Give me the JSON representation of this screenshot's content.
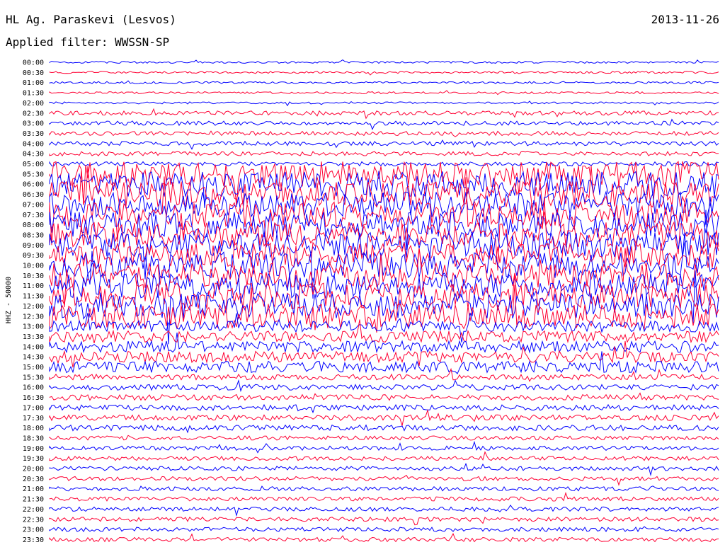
{
  "header": {
    "station": "HL Ag. Paraskevi (Lesvos)",
    "date": "2013-11-26",
    "filter_label": "Applied filter: WWSSN-SP"
  },
  "chart_data": {
    "type": "line",
    "title": "HL Ag. Paraskevi (Lesvos)",
    "date": "2013-11-26",
    "filter": "WWSSN-SP",
    "channel_label": "HHZ - 50000",
    "trace_colors": [
      "#0000ff",
      "#ff0033"
    ],
    "row_labels": [
      "00:00",
      "00:30",
      "01:00",
      "01:30",
      "02:00",
      "02:30",
      "03:00",
      "03:30",
      "04:00",
      "04:30",
      "05:00",
      "05:30",
      "06:00",
      "06:30",
      "07:00",
      "07:30",
      "08:00",
      "08:30",
      "09:00",
      "09:30",
      "10:00",
      "10:30",
      "11:00",
      "11:30",
      "12:00",
      "12:30",
      "13:00",
      "13:30",
      "14:00",
      "14:30",
      "15:00",
      "15:30",
      "16:00",
      "16:30",
      "17:00",
      "17:30",
      "18:00",
      "18:30",
      "19:00",
      "19:30",
      "20:00",
      "20:30",
      "21:00",
      "21:30",
      "22:00",
      "22:30",
      "23:00",
      "23:30"
    ],
    "activity_profiles": [
      {
        "rows": [
          0,
          4
        ],
        "level": 1.5
      },
      {
        "rows": [
          5,
          10
        ],
        "level": 3
      },
      {
        "rows": [
          11,
          25
        ],
        "level": 18
      },
      {
        "rows": [
          26,
          30
        ],
        "level": 8
      },
      {
        "rows": [
          31,
          36
        ],
        "level": 4
      },
      {
        "rows": [
          37,
          47
        ],
        "level": 3
      }
    ],
    "grid": false,
    "legend": "none"
  }
}
